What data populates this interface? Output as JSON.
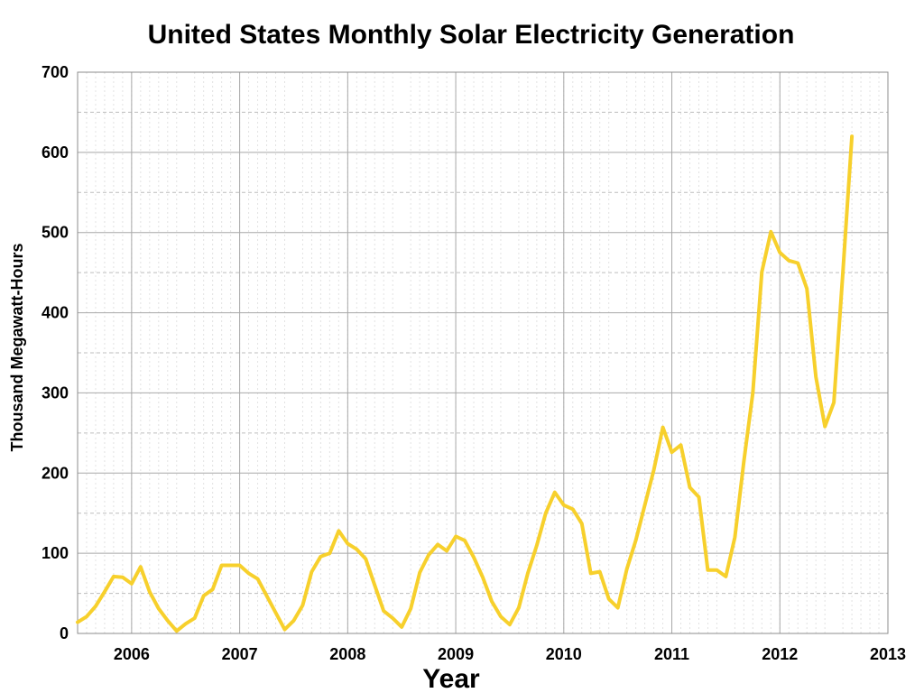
{
  "chart_data": {
    "type": "line",
    "title": "United States Monthly Solar Electricity Generation",
    "xlabel": "Year",
    "ylabel": "Thousand Megawatt-Hours",
    "ylim": [
      0,
      700
    ],
    "yticks": [
      "0",
      "100",
      "200",
      "300",
      "400",
      "500",
      "600",
      "700"
    ],
    "xticks": [
      "2006",
      "2007",
      "2008",
      "2009",
      "2010",
      "2011",
      "2012",
      "2013"
    ],
    "grid": true,
    "line_color": "#f7d02c",
    "series": [
      {
        "x": [
          "2006-01",
          "2006-02",
          "2006-03",
          "2006-04",
          "2006-05",
          "2006-06",
          "2006-07",
          "2006-08",
          "2006-09",
          "2006-10",
          "2006-11",
          "2006-12",
          "2007-01",
          "2007-02",
          "2007-03",
          "2007-04",
          "2007-05",
          "2007-06",
          "2007-07",
          "2007-08",
          "2007-09",
          "2007-10",
          "2007-11",
          "2007-12",
          "2008-01",
          "2008-02",
          "2008-03",
          "2008-04",
          "2008-05",
          "2008-06",
          "2008-07",
          "2008-08",
          "2008-09",
          "2008-10",
          "2008-11",
          "2008-12",
          "2009-01",
          "2009-02",
          "2009-03",
          "2009-04",
          "2009-05",
          "2009-06",
          "2009-07",
          "2009-08",
          "2009-09",
          "2009-10",
          "2009-11",
          "2009-12",
          "2010-01",
          "2010-02",
          "2010-03",
          "2010-04",
          "2010-05",
          "2010-06",
          "2010-07",
          "2010-08",
          "2010-09",
          "2010-10",
          "2010-11",
          "2010-12",
          "2011-01",
          "2011-02",
          "2011-03",
          "2011-04",
          "2011-05",
          "2011-06",
          "2011-07",
          "2011-08",
          "2011-09",
          "2011-10",
          "2011-11",
          "2011-12",
          "2012-01",
          "2012-02",
          "2012-03",
          "2012-04",
          "2012-05",
          "2012-06",
          "2012-07",
          "2012-08",
          "2012-09",
          "2012-10",
          "2012-11",
          "2012-12",
          "2013-01",
          "2013-02",
          "2013-03"
        ],
        "y": [
          14,
          21,
          34,
          52,
          71,
          70,
          62,
          83,
          52,
          31,
          16,
          3,
          12,
          19,
          47,
          55,
          85,
          85,
          85,
          75,
          68,
          47,
          26,
          5,
          16,
          35,
          77,
          96,
          100,
          128,
          112,
          105,
          93,
          60,
          28,
          19,
          8,
          31,
          76,
          98,
          111,
          103,
          121,
          116,
          95,
          70,
          40,
          21,
          11,
          32,
          75,
          110,
          150,
          176,
          160,
          155,
          137,
          75,
          77,
          43,
          32,
          80,
          116,
          160,
          204,
          257,
          226,
          235,
          182,
          170,
          79,
          79,
          71,
          120,
          215,
          300,
          451,
          501,
          475,
          465,
          462,
          430,
          320,
          258,
          288,
          450,
          620
        ]
      }
    ]
  }
}
